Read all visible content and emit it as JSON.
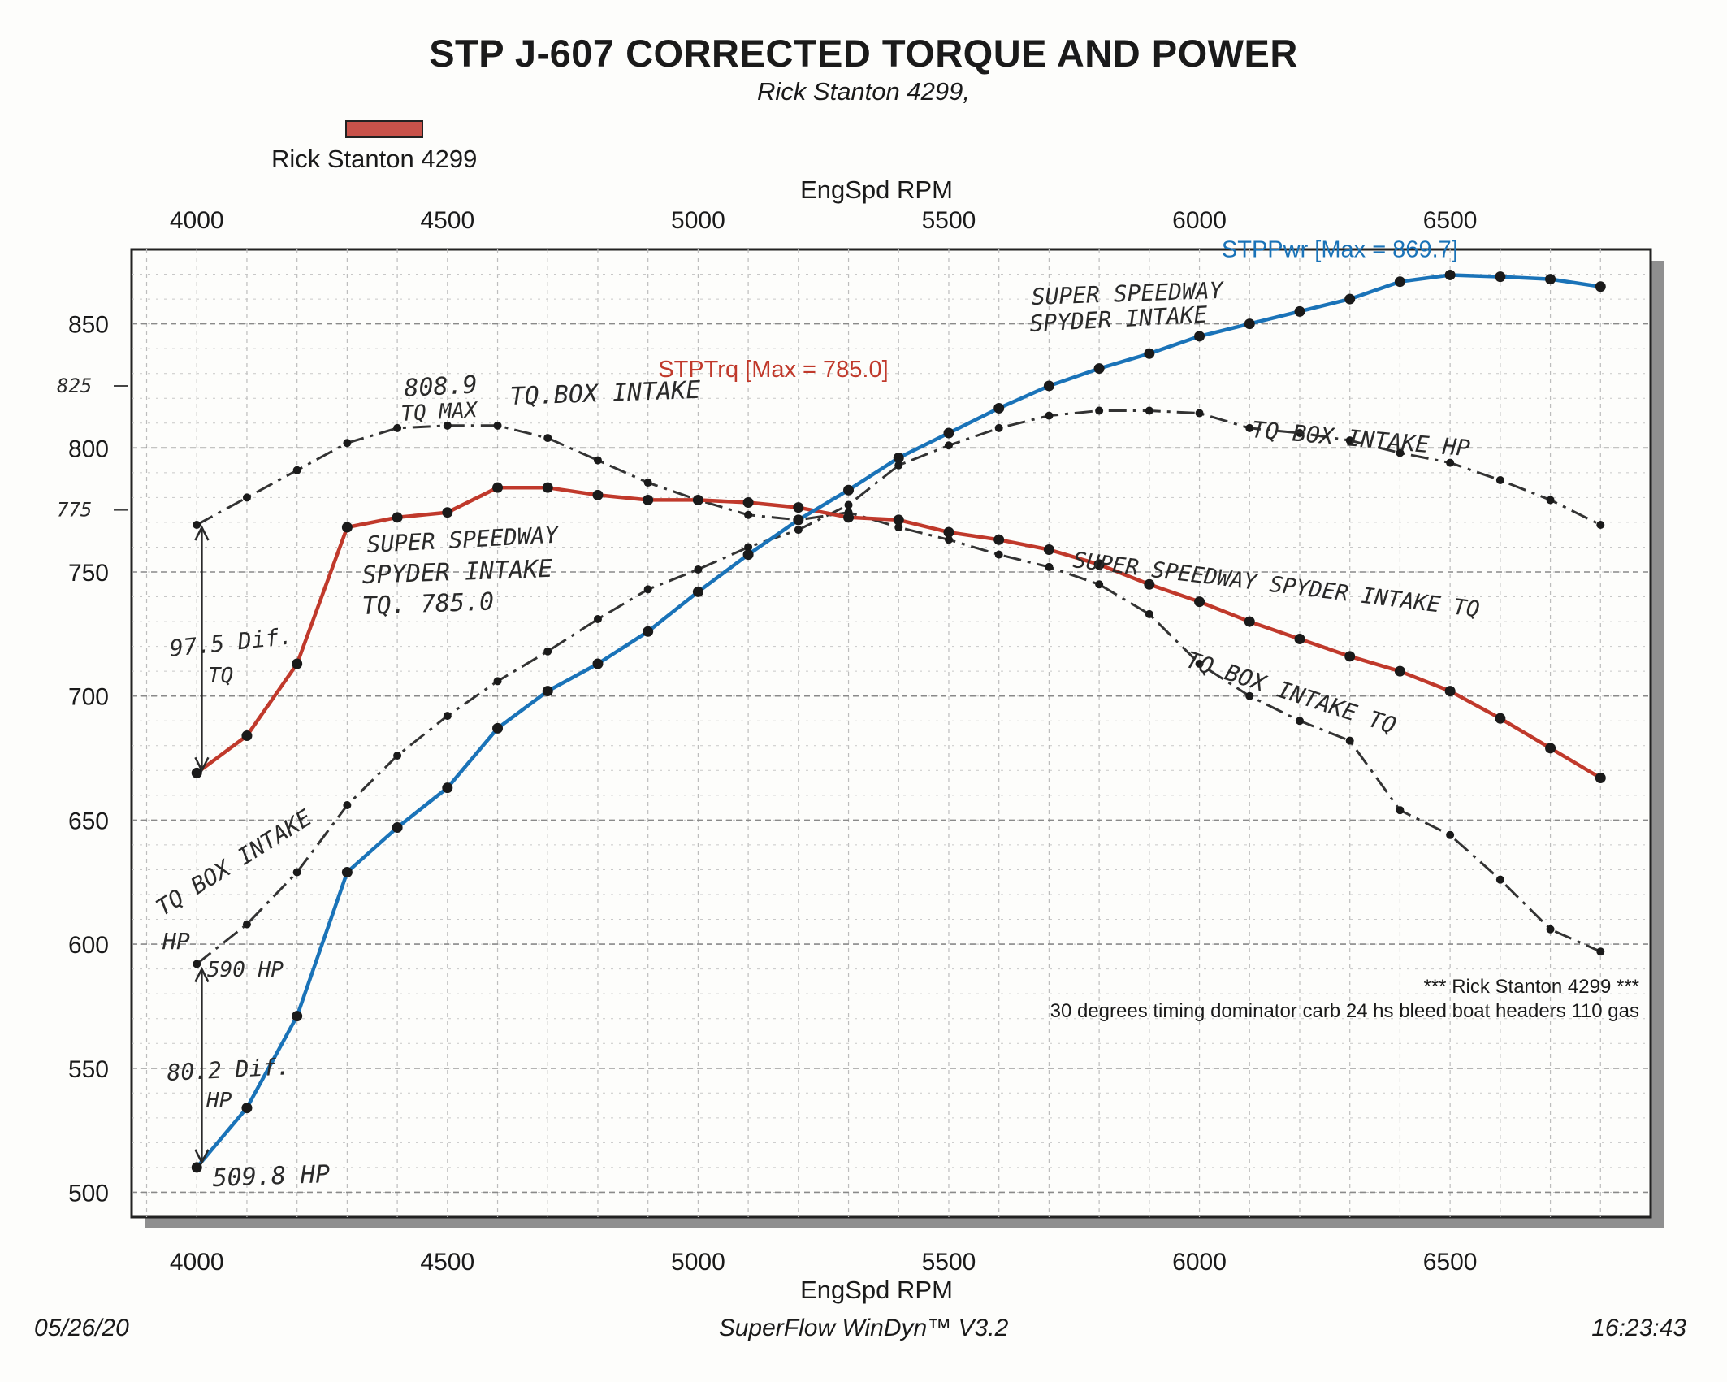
{
  "header": {
    "title": "STP J-607 CORRECTED TORQUE AND POWER",
    "subtitle": "Rick Stanton 4299,"
  },
  "legend": {
    "label": "Rick Stanton 4299",
    "color": "#c8524a"
  },
  "footer": {
    "date": "05/26/20",
    "software": "SuperFlow WinDyn™ V3.2",
    "time": "16:23:43"
  },
  "chart_data": {
    "type": "line",
    "xlabel": "EngSpd RPM",
    "x_axis_position": "top and bottom",
    "xlim": [
      3870,
      6900
    ],
    "ylim": [
      490,
      880
    ],
    "x_ticks": [
      4000,
      4500,
      5000,
      5500,
      6000,
      6500
    ],
    "y_ticks": [
      500,
      550,
      600,
      650,
      700,
      750,
      800,
      850
    ],
    "y_handwritten_ticks": [
      {
        "value": 825,
        "label": "825"
      },
      {
        "value": 775,
        "label": "775"
      }
    ],
    "grid": true,
    "x": [
      4000,
      4100,
      4200,
      4300,
      4400,
      4500,
      4600,
      4700,
      4800,
      4900,
      5000,
      5100,
      5200,
      5300,
      5400,
      5500,
      5600,
      5700,
      5800,
      5900,
      6000,
      6100,
      6200,
      6300,
      6400,
      6500,
      6600,
      6700,
      6800
    ],
    "series": [
      {
        "name": "STPTrq",
        "color": "#c0392b",
        "style": "solid",
        "annotation": "STPTrq [Max = 785.0]",
        "values": [
          669,
          684,
          713,
          768,
          772,
          774,
          784,
          784,
          781,
          779,
          779,
          778,
          776,
          772,
          771,
          766,
          763,
          759,
          753,
          745,
          738,
          730,
          723,
          716,
          710,
          702,
          691,
          679,
          667
        ]
      },
      {
        "name": "STPPwr",
        "color": "#1a73b8",
        "style": "solid",
        "annotation": "STPPwr [Max = 869.7]",
        "values": [
          510,
          534,
          571,
          629,
          647,
          663,
          687,
          702,
          713,
          726,
          742,
          757,
          771,
          783,
          796,
          806,
          816,
          825,
          832,
          838,
          845,
          850,
          855,
          860,
          867,
          869.7,
          869,
          868,
          865
        ]
      },
      {
        "name": "TQ BOX INTAKE TQ",
        "color": "#333333",
        "style": "dash-dot",
        "values": [
          769,
          780,
          791,
          802,
          808,
          809,
          809,
          804,
          795,
          786,
          779,
          773,
          771,
          774,
          768,
          763,
          757,
          752,
          745,
          733,
          713,
          700,
          690,
          682,
          654,
          644,
          626,
          606,
          597
        ]
      },
      {
        "name": "TQ BOX INTAKE HP",
        "color": "#333333",
        "style": "dash-dot",
        "values": [
          592,
          608,
          629,
          656,
          676,
          692,
          706,
          718,
          731,
          743,
          751,
          760,
          767,
          777,
          793,
          801,
          808,
          813,
          815,
          815,
          814,
          808,
          806,
          803,
          798,
          794,
          787,
          779,
          769
        ]
      }
    ],
    "chart_annotations": [
      {
        "text": "808.9",
        "kind": "handwritten"
      },
      {
        "text": "TQ MAX",
        "kind": "handwritten"
      },
      {
        "text": "TQ.BOX INTAKE",
        "kind": "handwritten"
      },
      {
        "text": "SUPER SPEEDWAY",
        "kind": "handwritten"
      },
      {
        "text": "SPYDER INTAKE",
        "kind": "handwritten"
      },
      {
        "text": "SUPER SPEEDWAY",
        "kind": "handwritten"
      },
      {
        "text": "SPYDER INTAKE",
        "kind": "handwritten"
      },
      {
        "text": "TQ. 785.0",
        "kind": "handwritten"
      },
      {
        "text": "TQ BOX INTAKE HP",
        "kind": "handwritten"
      },
      {
        "text": "SUPER SPEEDWAY SPYDER INTAKE TQ",
        "kind": "handwritten"
      },
      {
        "text": "TQ BOX INTAKE TQ",
        "kind": "handwritten"
      },
      {
        "text": "97.5 Dif.",
        "kind": "handwritten"
      },
      {
        "text": "TQ",
        "kind": "handwritten"
      },
      {
        "text": "TQ BOX INTAKE",
        "kind": "handwritten"
      },
      {
        "text": "HP",
        "kind": "handwritten"
      },
      {
        "text": "590 HP",
        "kind": "handwritten"
      },
      {
        "text": "80.2 Dif.",
        "kind": "handwritten"
      },
      {
        "text": "HP",
        "kind": "handwritten"
      },
      {
        "text": "509.8 HP",
        "kind": "handwritten"
      }
    ],
    "notes": [
      "*** Rick Stanton 4299 ***",
      "30 degrees timing dominator carb 24 hs bleed boat headers 110 gas"
    ]
  }
}
